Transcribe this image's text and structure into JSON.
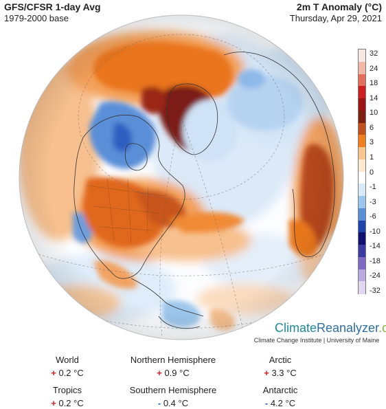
{
  "header": {
    "title": "GFS/CFSR 1-day Avg",
    "baseline": "1979-2000 base",
    "metric": "2m T Anomaly (°C)",
    "date": "Thursday, Apr 29, 2021"
  },
  "legend": {
    "ticks": [
      "32",
      "24",
      "18",
      "14",
      "10",
      "6",
      "3",
      "1",
      "0",
      "-1",
      "-3",
      "-6",
      "-10",
      "-14",
      "-18",
      "-24",
      "-32"
    ],
    "colors": [
      "#f7e7e2",
      "#f1b7a8",
      "#e46e5e",
      "#cc1f1f",
      "#9a1414",
      "#7d1f10",
      "#c0501c",
      "#f07f1f",
      "#f8c791",
      "#fbe8cf",
      "#ffffff",
      "#d8e9f7",
      "#9dc6ec",
      "#5a8fd8",
      "#1f43a8",
      "#101070",
      "#3a3aa0",
      "#7e6ac4",
      "#b8a9de",
      "#e0d6ef"
    ]
  },
  "brand": {
    "climate": "Climate",
    "reanalyzer": "Reanalyzer",
    "org": ".org",
    "sub": "Climate Change Institute | University of Maine"
  },
  "stats": {
    "unit": "°C",
    "items": [
      {
        "name": "World",
        "sign": "+",
        "value": "0.2"
      },
      {
        "name": "Northern Hemisphere",
        "sign": "+",
        "value": "0.9"
      },
      {
        "name": "Arctic",
        "sign": "+",
        "value": "3.3"
      },
      {
        "name": "Tropics",
        "sign": "+",
        "value": "0.2"
      },
      {
        "name": "Southern Hemisphere",
        "sign": "-",
        "value": "0.4"
      },
      {
        "name": "Antarctic",
        "sign": "-",
        "value": "4.2"
      }
    ]
  }
}
